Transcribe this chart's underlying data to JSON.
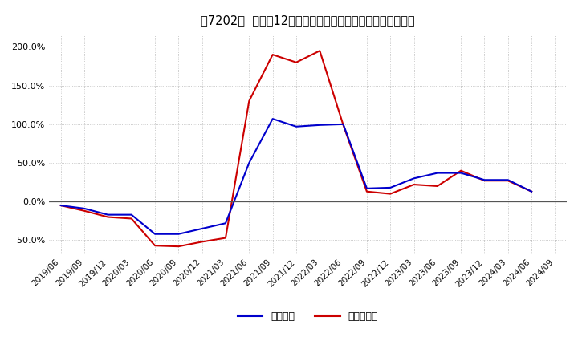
{
  "background_color": "#ffffff",
  "grid_color": "#bbbbbb",
  "legend_labels": [
    "経常利益",
    "当期純利益"
  ],
  "line_colors": [
    "#0000cc",
    "#cc0000"
  ],
  "x_labels": [
    "2019/06",
    "2019/09",
    "2019/12",
    "2020/03",
    "2020/06",
    "2020/09",
    "2020/12",
    "2021/03",
    "2021/06",
    "2021/09",
    "2021/12",
    "2022/03",
    "2022/06",
    "2022/09",
    "2022/12",
    "2023/03",
    "2023/06",
    "2023/09",
    "2023/12",
    "2024/03",
    "2024/06",
    "2024/09"
  ],
  "keijo_rieki": [
    -0.05,
    -0.09,
    -0.17,
    -0.17,
    -0.42,
    -0.42,
    -0.35,
    -0.28,
    0.5,
    1.07,
    0.97,
    0.99,
    1.0,
    0.17,
    0.18,
    0.3,
    0.37,
    0.37,
    0.28,
    0.28,
    0.13,
    null
  ],
  "toki_junrieki": [
    -0.05,
    -0.12,
    -0.2,
    -0.22,
    -0.57,
    -0.58,
    -0.52,
    -0.47,
    1.3,
    1.9,
    1.8,
    1.95,
    0.99,
    0.13,
    0.1,
    0.22,
    0.2,
    0.4,
    0.27,
    0.27,
    0.13,
    null
  ],
  "ylim": [
    -0.68,
    2.15
  ],
  "yticks": [
    -0.5,
    0.0,
    0.5,
    1.0,
    1.5,
    2.0
  ]
}
